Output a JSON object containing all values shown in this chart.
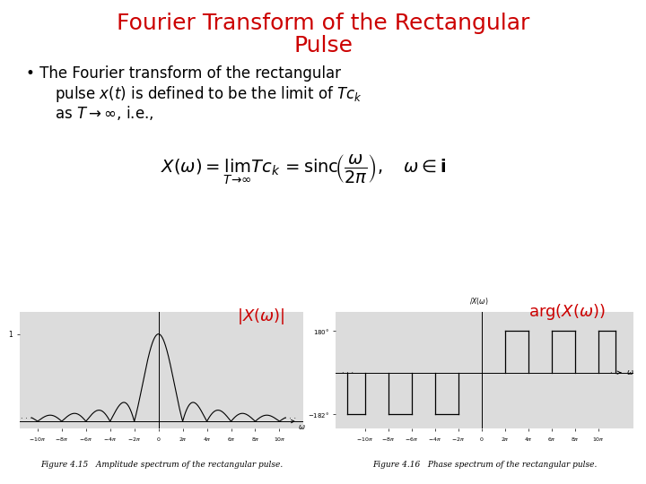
{
  "title_line1": "Fourier Transform of the Rectangular",
  "title_line2": "Pulse",
  "title_color": "#cc0000",
  "title_fontsize": 18,
  "bullet_fontsize": 12,
  "formula_fontsize": 14,
  "fig_label_color": "#cc0000",
  "fig_label_fontsize": 13,
  "fig1_caption": "Figure 4.15   Amplitude spectrum of the rectangular pulse.",
  "fig2_caption": "Figure 4.16   Phase spectrum of the rectangular pulse.",
  "caption_fontsize": 6.5,
  "background_color": "#ffffff",
  "plot_bg_color": "#dcdcdc",
  "pi": 3.14159265358979
}
